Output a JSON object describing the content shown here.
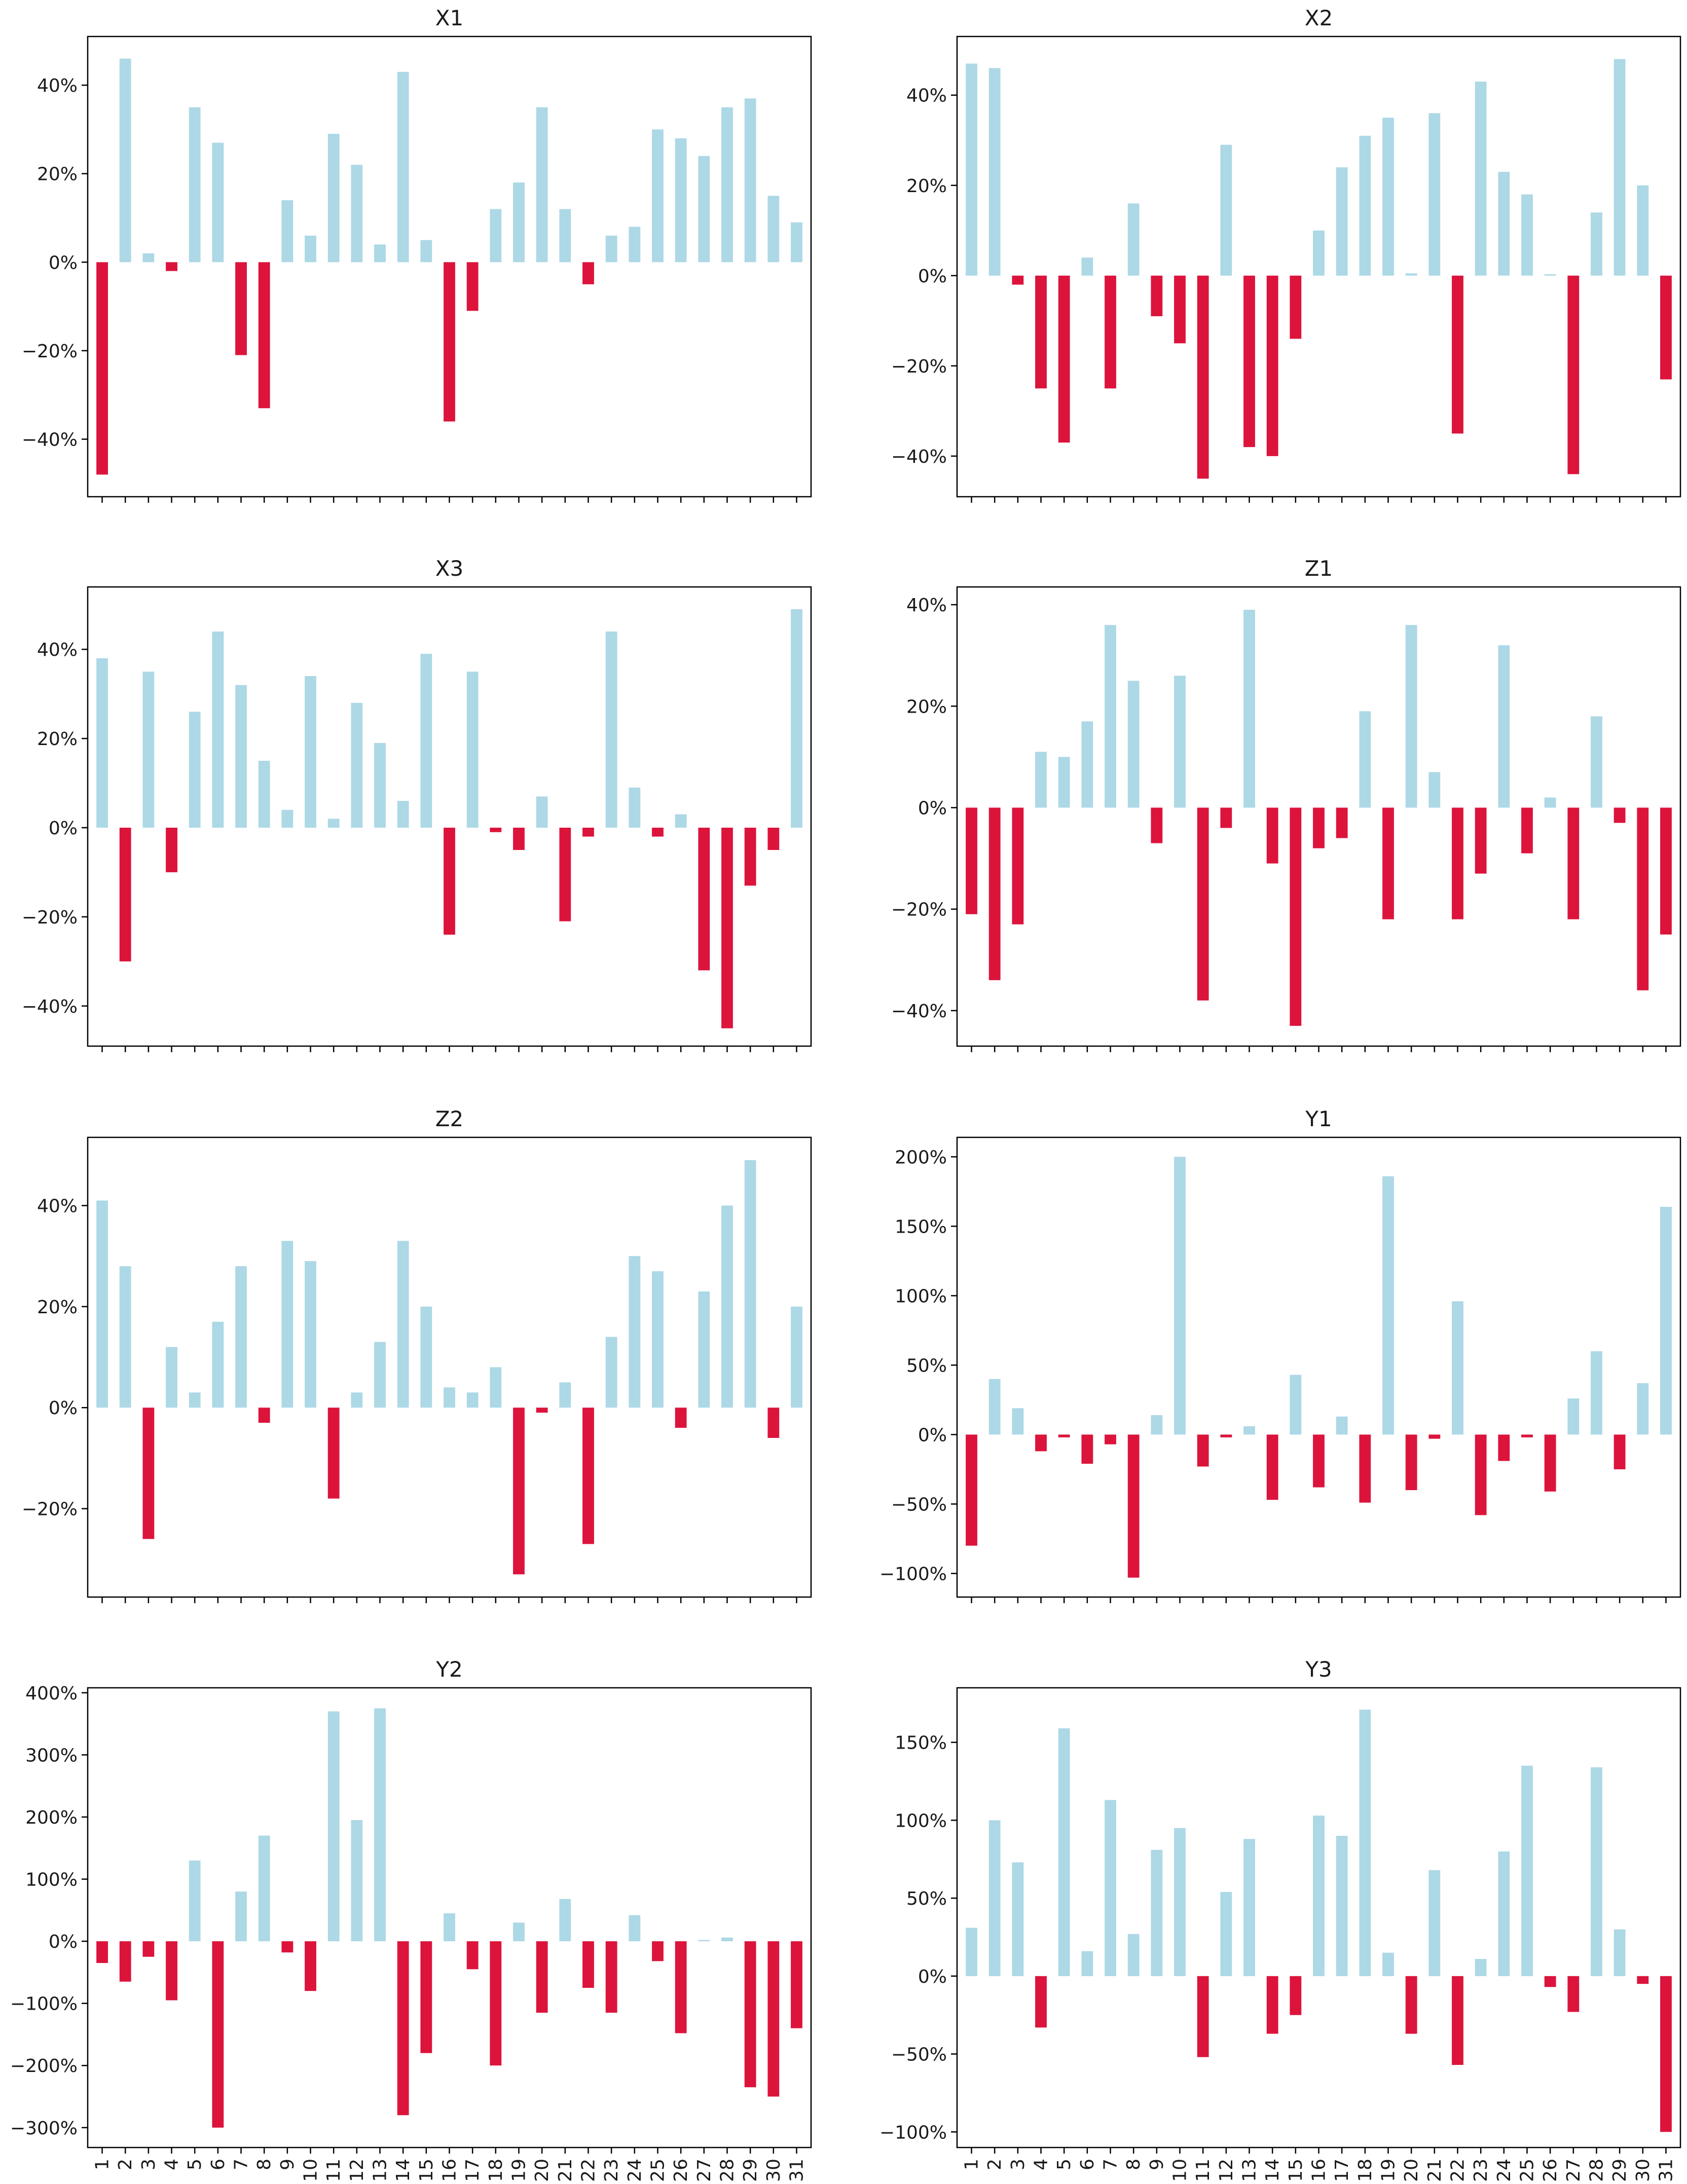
{
  "colors": {
    "positive": "#add8e6",
    "negative": "#dc143c",
    "axis": "#000000",
    "text": "#1a1a1a"
  },
  "chart_data": [
    {
      "type": "bar",
      "title": "X1",
      "x": [
        1,
        2,
        3,
        4,
        5,
        6,
        7,
        8,
        9,
        10,
        11,
        12,
        13,
        14,
        15,
        16,
        17,
        18,
        19,
        20,
        21,
        22,
        23,
        24,
        25,
        26,
        27,
        28,
        29,
        30,
        31
      ],
      "values": [
        -48,
        46,
        2,
        -2,
        35,
        27,
        -21,
        -33,
        14,
        6,
        29,
        22,
        4,
        43,
        5,
        -36,
        -11,
        12,
        18,
        35,
        12,
        -5,
        6,
        8,
        30,
        28,
        24,
        35,
        37,
        15,
        9
      ],
      "ylim": [
        -53,
        51
      ],
      "yticks": [
        -40,
        -20,
        0,
        20,
        40
      ],
      "ytick_labels": [
        "−40%",
        "−20%",
        "0%",
        "20%",
        "40%"
      ],
      "show_xtick_labels": false
    },
    {
      "type": "bar",
      "title": "X2",
      "x": [
        1,
        2,
        3,
        4,
        5,
        6,
        7,
        8,
        9,
        10,
        11,
        12,
        13,
        14,
        15,
        16,
        17,
        18,
        19,
        20,
        21,
        22,
        23,
        24,
        25,
        26,
        27,
        28,
        29,
        30,
        31
      ],
      "values": [
        47,
        46,
        -2,
        -25,
        -37,
        4,
        -25,
        16,
        -9,
        -15,
        -45,
        29,
        -38,
        -40,
        -14,
        10,
        24,
        31,
        35,
        0.5,
        36,
        -35,
        43,
        23,
        18,
        0.3,
        -44,
        14,
        48,
        20,
        -23
      ],
      "ylim": [
        -49,
        53
      ],
      "yticks": [
        -40,
        -20,
        0,
        20,
        40
      ],
      "ytick_labels": [
        "−40%",
        "−20%",
        "0%",
        "20%",
        "40%"
      ],
      "show_xtick_labels": false
    },
    {
      "type": "bar",
      "title": "X3",
      "x": [
        1,
        2,
        3,
        4,
        5,
        6,
        7,
        8,
        9,
        10,
        11,
        12,
        13,
        14,
        15,
        16,
        17,
        18,
        19,
        20,
        21,
        22,
        23,
        24,
        25,
        26,
        27,
        28,
        29,
        30,
        31
      ],
      "values": [
        38,
        -30,
        35,
        -10,
        26,
        44,
        32,
        15,
        4,
        34,
        2,
        28,
        19,
        6,
        39,
        -24,
        35,
        -1,
        -5,
        7,
        -21,
        -2,
        44,
        9,
        -2,
        3,
        -32,
        -45,
        -13,
        -5,
        49
      ],
      "ylim": [
        -49,
        54
      ],
      "yticks": [
        -40,
        -20,
        0,
        20,
        40
      ],
      "ytick_labels": [
        "−40%",
        "−20%",
        "0%",
        "20%",
        "40%"
      ],
      "show_xtick_labels": false
    },
    {
      "type": "bar",
      "title": "Z1",
      "x": [
        1,
        2,
        3,
        4,
        5,
        6,
        7,
        8,
        9,
        10,
        11,
        12,
        13,
        14,
        15,
        16,
        17,
        18,
        19,
        20,
        21,
        22,
        23,
        24,
        25,
        26,
        27,
        28,
        29,
        30,
        31
      ],
      "values": [
        -21,
        -34,
        -23,
        11,
        10,
        17,
        36,
        25,
        -7,
        26,
        -38,
        -4,
        39,
        -11,
        -43,
        -8,
        -6,
        19,
        -22,
        36,
        7,
        -22,
        -13,
        32,
        -9,
        2,
        -22,
        18,
        -3,
        -36,
        -25
      ],
      "ylim": [
        -47,
        43.5
      ],
      "yticks": [
        -40,
        -20,
        0,
        20,
        40
      ],
      "ytick_labels": [
        "−40%",
        "−20%",
        "0%",
        "20%",
        "40%"
      ],
      "show_xtick_labels": false
    },
    {
      "type": "bar",
      "title": "Z2",
      "x": [
        1,
        2,
        3,
        4,
        5,
        6,
        7,
        8,
        9,
        10,
        11,
        12,
        13,
        14,
        15,
        16,
        17,
        18,
        19,
        20,
        21,
        22,
        23,
        24,
        25,
        26,
        27,
        28,
        29,
        30,
        31
      ],
      "values": [
        41,
        28,
        -26,
        12,
        3,
        17,
        28,
        -3,
        33,
        29,
        -18,
        3,
        13,
        33,
        20,
        4,
        3,
        8,
        -33,
        -1,
        5,
        -27,
        14,
        30,
        27,
        -4,
        23,
        40,
        49,
        -6,
        20
      ],
      "ylim": [
        -37.5,
        53.5
      ],
      "yticks": [
        -20,
        0,
        20,
        40
      ],
      "ytick_labels": [
        "−20%",
        "0%",
        "20%",
        "40%"
      ],
      "show_xtick_labels": false
    },
    {
      "type": "bar",
      "title": "Y1",
      "x": [
        1,
        2,
        3,
        4,
        5,
        6,
        7,
        8,
        9,
        10,
        11,
        12,
        13,
        14,
        15,
        16,
        17,
        18,
        19,
        20,
        21,
        22,
        23,
        24,
        25,
        26,
        27,
        28,
        29,
        30,
        31
      ],
      "values": [
        -80,
        40,
        19,
        -12,
        -2,
        -21,
        -7,
        -103,
        14,
        200,
        -23,
        -2,
        6,
        -47,
        43,
        -38,
        13,
        -49,
        186,
        -40,
        -3,
        96,
        -58,
        -19,
        -2,
        -41,
        26,
        60,
        -25,
        37,
        164
      ],
      "ylim": [
        -117,
        214
      ],
      "yticks": [
        -100,
        -50,
        0,
        50,
        100,
        150,
        200
      ],
      "ytick_labels": [
        "−100%",
        "−50%",
        "0%",
        "50%",
        "100%",
        "150%",
        "200%"
      ],
      "show_xtick_labels": false
    },
    {
      "type": "bar",
      "title": "Y2",
      "x": [
        1,
        2,
        3,
        4,
        5,
        6,
        7,
        8,
        9,
        10,
        11,
        12,
        13,
        14,
        15,
        16,
        17,
        18,
        19,
        20,
        21,
        22,
        23,
        24,
        25,
        26,
        27,
        28,
        29,
        30,
        31
      ],
      "values": [
        -35,
        -65,
        -25,
        -95,
        130,
        -300,
        80,
        170,
        -18,
        -80,
        370,
        195,
        375,
        -280,
        -180,
        45,
        -45,
        -200,
        30,
        -115,
        68,
        -75,
        -115,
        42,
        -32,
        -148,
        2,
        6,
        -235,
        -250,
        -140
      ],
      "ylim": [
        -332,
        408
      ],
      "yticks": [
        -300,
        -200,
        -100,
        0,
        100,
        200,
        300,
        400
      ],
      "ytick_labels": [
        "−300%",
        "−200%",
        "−100%",
        "0%",
        "100%",
        "200%",
        "300%",
        "400%"
      ],
      "show_xtick_labels": true,
      "xtick_labels": [
        "1",
        "2",
        "3",
        "4",
        "5",
        "6",
        "7",
        "8",
        "9",
        "10",
        "11",
        "12",
        "13",
        "14",
        "15",
        "16",
        "17",
        "18",
        "19",
        "20",
        "21",
        "22",
        "23",
        "24",
        "25",
        "26",
        "27",
        "28",
        "29",
        "30",
        "31"
      ]
    },
    {
      "type": "bar",
      "title": "Y3",
      "x": [
        1,
        2,
        3,
        4,
        5,
        6,
        7,
        8,
        9,
        10,
        11,
        12,
        13,
        14,
        15,
        16,
        17,
        18,
        19,
        20,
        21,
        22,
        23,
        24,
        25,
        26,
        27,
        28,
        29,
        30,
        31
      ],
      "values": [
        31,
        100,
        73,
        -33,
        159,
        16,
        113,
        27,
        81,
        95,
        -52,
        54,
        88,
        -37,
        -25,
        103,
        90,
        171,
        15,
        -37,
        68,
        -57,
        11,
        80,
        135,
        -7,
        -23,
        134,
        30,
        -5,
        -100
      ],
      "ylim": [
        -110,
        185
      ],
      "yticks": [
        -100,
        -50,
        0,
        50,
        100,
        150
      ],
      "ytick_labels": [
        "−100%",
        "−50%",
        "0%",
        "50%",
        "100%",
        "150%"
      ],
      "show_xtick_labels": true,
      "xtick_labels": [
        "1",
        "2",
        "3",
        "4",
        "5",
        "6",
        "7",
        "8",
        "9",
        "10",
        "11",
        "12",
        "13",
        "14",
        "15",
        "16",
        "17",
        "18",
        "19",
        "20",
        "21",
        "22",
        "23",
        "24",
        "25",
        "26",
        "27",
        "28",
        "29",
        "30",
        "31"
      ]
    }
  ]
}
